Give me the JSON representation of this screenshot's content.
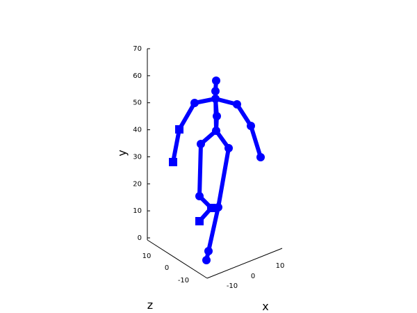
{
  "chart_data": {
    "type": "scatter",
    "subtype": "3d-skeleton",
    "title": "",
    "xlabel": "x",
    "ylabel": "y",
    "zlabel": "z",
    "ylim": [
      0,
      70
    ],
    "y_ticks": [
      "0",
      "10",
      "20",
      "30",
      "40",
      "50",
      "60",
      "70"
    ],
    "x_ticks": [
      "-10",
      "0",
      "10"
    ],
    "z_ticks": [
      "10",
      "0",
      "-10"
    ],
    "grid": false,
    "color": "#0000ff",
    "joints": [
      {
        "id": "head",
        "shape": "circle"
      },
      {
        "id": "neck",
        "shape": "circle"
      },
      {
        "id": "upper-spine",
        "shape": "circle"
      },
      {
        "id": "mid-spine",
        "shape": "circle"
      },
      {
        "id": "pelvis",
        "shape": "circle"
      },
      {
        "id": "left-shoulder",
        "shape": "circle"
      },
      {
        "id": "left-elbow",
        "shape": "square"
      },
      {
        "id": "left-hand",
        "shape": "square"
      },
      {
        "id": "right-shoulder",
        "shape": "circle"
      },
      {
        "id": "right-elbow",
        "shape": "circle"
      },
      {
        "id": "right-hand",
        "shape": "circle"
      },
      {
        "id": "left-hip",
        "shape": "circle"
      },
      {
        "id": "left-knee",
        "shape": "circle"
      },
      {
        "id": "left-ankle",
        "shape": "square"
      },
      {
        "id": "left-foot",
        "shape": "square"
      },
      {
        "id": "right-hip",
        "shape": "circle"
      },
      {
        "id": "right-knee",
        "shape": "circle"
      },
      {
        "id": "right-ankle",
        "shape": "circle"
      },
      {
        "id": "right-foot",
        "shape": "circle"
      }
    ],
    "bones": [
      [
        "head",
        "neck"
      ],
      [
        "neck",
        "upper-spine"
      ],
      [
        "upper-spine",
        "mid-spine"
      ],
      [
        "mid-spine",
        "pelvis"
      ],
      [
        "upper-spine",
        "left-shoulder"
      ],
      [
        "left-shoulder",
        "left-elbow"
      ],
      [
        "left-elbow",
        "left-hand"
      ],
      [
        "upper-spine",
        "right-shoulder"
      ],
      [
        "right-shoulder",
        "right-elbow"
      ],
      [
        "right-elbow",
        "right-hand"
      ],
      [
        "neck",
        "pelvis"
      ],
      [
        "pelvis",
        "left-hip"
      ],
      [
        "left-hip",
        "left-knee"
      ],
      [
        "left-knee",
        "left-ankle"
      ],
      [
        "left-ankle",
        "left-foot"
      ],
      [
        "pelvis",
        "right-hip"
      ],
      [
        "right-hip",
        "right-knee"
      ],
      [
        "right-knee",
        "right-ankle"
      ],
      [
        "right-ankle",
        "right-foot"
      ]
    ]
  }
}
